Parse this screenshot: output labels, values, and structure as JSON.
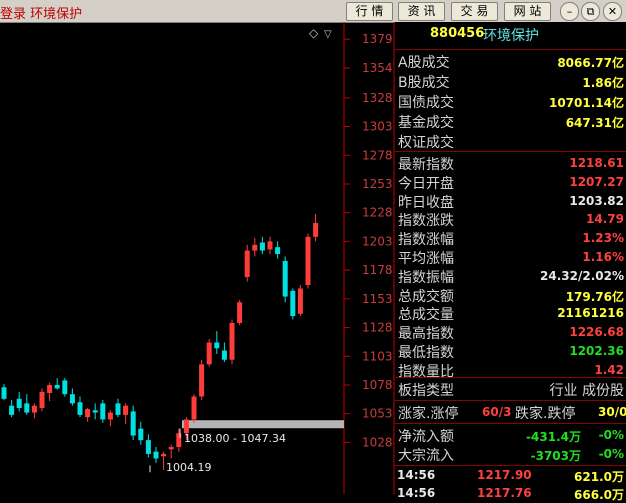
{
  "title_bar": {
    "title": "登录 环境保护",
    "buttons": [
      "行 情",
      "资 讯",
      "交 易",
      "网 站"
    ],
    "window_controls": [
      "minimize-icon",
      "restore-icon",
      "close-icon"
    ]
  },
  "chart": {
    "corner_icons": [
      "diamond-icon",
      "chevron-down-icon"
    ],
    "annotations": {
      "high_label": "1038.00 - 1047.34",
      "low_label": "1004.19"
    }
  },
  "chart_data": {
    "type": "candlestick",
    "y_ticks": [
      "1379",
      "1354",
      "1328",
      "1303",
      "1278",
      "1253",
      "1228",
      "1203",
      "1178",
      "1153",
      "1128",
      "1103",
      "1078",
      "1053",
      "1028"
    ],
    "y_tick_values": [
      1379,
      1354,
      1328,
      1303,
      1278,
      1253,
      1228,
      1203,
      1178,
      1153,
      1128,
      1103,
      1078,
      1053,
      1028
    ],
    "ylim": [
      1004,
      1394
    ],
    "gap_band": [
      1038.0,
      1047.34
    ],
    "colors": {
      "up": "#ff3c3c",
      "down": "#00e0e0",
      "axis": "#c00000",
      "gap": "#b4b4b4"
    },
    "candles": [
      {
        "o": 1076,
        "h": 1079,
        "l": 1065,
        "c": 1066
      },
      {
        "o": 1060,
        "h": 1065,
        "l": 1050,
        "c": 1052
      },
      {
        "o": 1066,
        "h": 1072,
        "l": 1055,
        "c": 1058
      },
      {
        "o": 1062,
        "h": 1070,
        "l": 1052,
        "c": 1054
      },
      {
        "o": 1054,
        "h": 1062,
        "l": 1049,
        "c": 1060
      },
      {
        "o": 1058,
        "h": 1075,
        "l": 1055,
        "c": 1072
      },
      {
        "o": 1071,
        "h": 1080,
        "l": 1064,
        "c": 1078
      },
      {
        "o": 1078,
        "h": 1084,
        "l": 1074,
        "c": 1075
      },
      {
        "o": 1082,
        "h": 1084,
        "l": 1068,
        "c": 1070
      },
      {
        "o": 1070,
        "h": 1075,
        "l": 1060,
        "c": 1062
      },
      {
        "o": 1063,
        "h": 1068,
        "l": 1050,
        "c": 1052
      },
      {
        "o": 1050,
        "h": 1058,
        "l": 1046,
        "c": 1057
      },
      {
        "o": 1056,
        "h": 1062,
        "l": 1048,
        "c": 1054
      },
      {
        "o": 1062,
        "h": 1065,
        "l": 1045,
        "c": 1048
      },
      {
        "o": 1048,
        "h": 1056,
        "l": 1042,
        "c": 1054
      },
      {
        "o": 1062,
        "h": 1066,
        "l": 1050,
        "c": 1052
      },
      {
        "o": 1052,
        "h": 1062,
        "l": 1044,
        "c": 1060
      },
      {
        "o": 1055,
        "h": 1060,
        "l": 1030,
        "c": 1034
      },
      {
        "o": 1040,
        "h": 1046,
        "l": 1026,
        "c": 1030
      },
      {
        "o": 1030,
        "h": 1035,
        "l": 1015,
        "c": 1018
      },
      {
        "o": 1020,
        "h": 1024,
        "l": 1010,
        "c": 1014
      },
      {
        "o": 1016,
        "h": 1020,
        "l": 1004,
        "c": 1018
      },
      {
        "o": 1022,
        "h": 1026,
        "l": 1014,
        "c": 1024
      },
      {
        "o": 1024,
        "h": 1040,
        "l": 1020,
        "c": 1036
      },
      {
        "o": 1036,
        "h": 1050,
        "l": 1030,
        "c": 1048
      },
      {
        "o": 1048,
        "h": 1070,
        "l": 1045,
        "c": 1068
      },
      {
        "o": 1068,
        "h": 1100,
        "l": 1065,
        "c": 1096
      },
      {
        "o": 1096,
        "h": 1118,
        "l": 1094,
        "c": 1115
      },
      {
        "o": 1115,
        "h": 1125,
        "l": 1105,
        "c": 1110
      },
      {
        "o": 1108,
        "h": 1115,
        "l": 1098,
        "c": 1100
      },
      {
        "o": 1100,
        "h": 1135,
        "l": 1096,
        "c": 1132
      },
      {
        "o": 1132,
        "h": 1152,
        "l": 1130,
        "c": 1150
      },
      {
        "o": 1172,
        "h": 1200,
        "l": 1168,
        "c": 1195
      },
      {
        "o": 1195,
        "h": 1206,
        "l": 1190,
        "c": 1200
      },
      {
        "o": 1202,
        "h": 1207,
        "l": 1192,
        "c": 1195
      },
      {
        "o": 1196,
        "h": 1207,
        "l": 1192,
        "c": 1203
      },
      {
        "o": 1198,
        "h": 1203,
        "l": 1188,
        "c": 1192
      },
      {
        "o": 1186,
        "h": 1190,
        "l": 1150,
        "c": 1155
      },
      {
        "o": 1160,
        "h": 1162,
        "l": 1135,
        "c": 1138
      },
      {
        "o": 1140,
        "h": 1165,
        "l": 1138,
        "c": 1162
      },
      {
        "o": 1165,
        "h": 1210,
        "l": 1162,
        "c": 1207
      },
      {
        "o": 1207,
        "h": 1227,
        "l": 1203,
        "c": 1219
      }
    ]
  },
  "quote_panel": {
    "header": {
      "code": "880456",
      "name": "环境保护"
    },
    "market_rows": [
      {
        "label": "A股成交",
        "value": "8066.77亿",
        "color": "yellow"
      },
      {
        "label": "B股成交",
        "value": "1.86亿",
        "color": "yellow"
      },
      {
        "label": "国债成交",
        "value": "10701.14亿",
        "color": "yellow"
      },
      {
        "label": "基金成交",
        "value": "647.31亿",
        "color": "yellow"
      },
      {
        "label": "权证成交",
        "value": "",
        "color": "yellow"
      }
    ],
    "index_rows": [
      {
        "label": "最新指数",
        "value": "1218.61",
        "color": "red"
      },
      {
        "label": "今日开盘",
        "value": "1207.27",
        "color": "red"
      },
      {
        "label": "昨日收盘",
        "value": "1203.82",
        "color": "white"
      },
      {
        "label": "指数涨跌",
        "value": "14.79",
        "color": "red"
      },
      {
        "label": "指数涨幅",
        "value": "1.23%",
        "color": "red"
      },
      {
        "label": "平均涨幅",
        "value": "1.16%",
        "color": "red"
      },
      {
        "label": "指数振幅",
        "value": "24.32/2.02%",
        "color": "white"
      },
      {
        "label": "总成交额",
        "value": "179.76亿",
        "color": "yellow"
      },
      {
        "label": "总成交量",
        "value": "21161216",
        "color": "yellow"
      },
      {
        "label": "最高指数",
        "value": "1226.68",
        "color": "red"
      },
      {
        "label": "最低指数",
        "value": "1202.36",
        "color": "green"
      },
      {
        "label": "指数量比",
        "value": "1.42",
        "color": "red"
      }
    ],
    "sector": {
      "label": "板指类型",
      "value": "行业 成份股"
    },
    "breadth": {
      "up_label": "涨家.涨停",
      "up_value": "60/3",
      "down_label": "跌家.跌停",
      "down_value": "30/0"
    },
    "flow_rows": [
      {
        "label": "净流入额",
        "value": "-431.4万",
        "pct": "-0%"
      },
      {
        "label": "大宗流入",
        "value": "-3703万",
        "pct": "-0%"
      }
    ],
    "ticks": [
      {
        "time": "14:56",
        "price": "1217.90",
        "volume": "621.0万"
      },
      {
        "time": "14:56",
        "price": "1217.76",
        "volume": "666.0万"
      }
    ]
  }
}
